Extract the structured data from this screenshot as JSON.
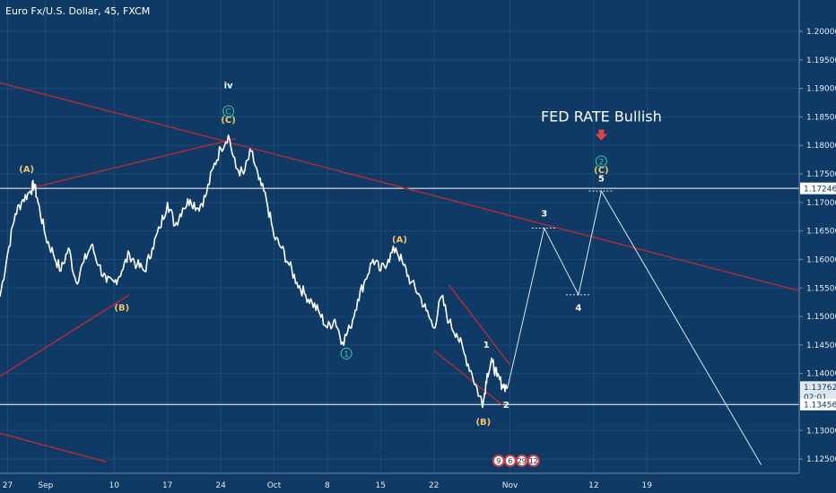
{
  "chart_data": {
    "type": "line",
    "title": "Euro Fx/U.S. Dollar, 45, FXCM",
    "colors": {
      "background": "#0f3a66",
      "price": "#ffffff",
      "trendline": "#b52a34",
      "wave_orange": "#f2c26b",
      "wave_green": "#3ec9a4",
      "projection": "#dde6ee",
      "hline": "#ffffff"
    },
    "ylim": [
      1.1225,
      1.2055
    ],
    "y_ticks": [
      "1.20000",
      "1.19500",
      "1.19000",
      "1.18500",
      "1.18000",
      "1.17500",
      "1.17000",
      "1.16500",
      "1.16000",
      "1.15500",
      "1.15000",
      "1.14500",
      "1.14000",
      "1.13500",
      "1.13000",
      "1.12500"
    ],
    "y_tick_values": [
      1.2,
      1.195,
      1.19,
      1.185,
      1.18,
      1.175,
      1.17,
      1.165,
      1.16,
      1.155,
      1.15,
      1.145,
      1.14,
      1.135,
      1.13,
      1.125
    ],
    "x_ticks": [
      {
        "label": "27",
        "t": 0
      },
      {
        "label": "Sep",
        "t": 5
      },
      {
        "label": "10",
        "t": 14
      },
      {
        "label": "17",
        "t": 21
      },
      {
        "label": "24",
        "t": 28
      },
      {
        "label": "Oct",
        "t": 35
      },
      {
        "label": "8",
        "t": 42
      },
      {
        "label": "15",
        "t": 49
      },
      {
        "label": "22",
        "t": 56
      },
      {
        "label": "Nov",
        "t": 66
      },
      {
        "label": "12",
        "t": 77
      },
      {
        "label": "19",
        "t": 84
      }
    ],
    "xlim": [
      -1,
      104
    ],
    "price_path": [
      [
        -1,
        1.1535
      ],
      [
        0,
        1.161
      ],
      [
        1,
        1.168
      ],
      [
        2,
        1.1705
      ],
      [
        3,
        1.172
      ],
      [
        3.5,
        1.1732
      ],
      [
        4,
        1.17
      ],
      [
        5,
        1.164
      ],
      [
        6,
        1.161
      ],
      [
        7,
        1.158
      ],
      [
        8,
        1.162
      ],
      [
        9,
        1.156
      ],
      [
        10,
        1.1595
      ],
      [
        11,
        1.1625
      ],
      [
        12,
        1.159
      ],
      [
        13,
        1.156
      ],
      [
        14,
        1.156
      ],
      [
        15,
        1.158
      ],
      [
        16,
        1.161
      ],
      [
        17,
        1.159
      ],
      [
        18,
        1.158
      ],
      [
        19,
        1.162
      ],
      [
        20,
        1.1655
      ],
      [
        21,
        1.17
      ],
      [
        22,
        1.166
      ],
      [
        23,
        1.169
      ],
      [
        24,
        1.1705
      ],
      [
        25,
        1.169
      ],
      [
        26,
        1.171
      ],
      [
        27,
        1.176
      ],
      [
        28,
        1.1795
      ],
      [
        29,
        1.1818
      ],
      [
        30,
        1.176
      ],
      [
        31,
        1.175
      ],
      [
        32,
        1.179
      ],
      [
        33,
        1.174
      ],
      [
        34,
        1.1705
      ],
      [
        35,
        1.164
      ],
      [
        36,
        1.162
      ],
      [
        37,
        1.159
      ],
      [
        38,
        1.156
      ],
      [
        39,
        1.154
      ],
      [
        40,
        1.1525
      ],
      [
        41,
        1.1505
      ],
      [
        42,
        1.148
      ],
      [
        43,
        1.1495
      ],
      [
        44,
        1.1455
      ],
      [
        45,
        1.148
      ],
      [
        46,
        1.153
      ],
      [
        47,
        1.1565
      ],
      [
        48,
        1.16
      ],
      [
        49,
        1.158
      ],
      [
        50,
        1.16
      ],
      [
        51,
        1.162
      ],
      [
        52,
        1.159
      ],
      [
        53,
        1.156
      ],
      [
        54,
        1.154
      ],
      [
        55,
        1.151
      ],
      [
        56,
        1.148
      ],
      [
        57,
        1.1535
      ],
      [
        58,
        1.149
      ],
      [
        59,
        1.147
      ],
      [
        60,
        1.1435
      ],
      [
        61,
        1.14
      ],
      [
        62,
        1.136
      ],
      [
        62.5,
        1.135
      ],
      [
        63,
        1.14
      ],
      [
        63.7,
        1.142
      ],
      [
        64.3,
        1.1395
      ],
      [
        65,
        1.138
      ],
      [
        65.7,
        1.1376
      ]
    ],
    "projection_path": [
      [
        65.7,
        1.1376
      ],
      [
        70.5,
        1.1655
      ],
      [
        75,
        1.1538
      ],
      [
        78,
        1.172
      ],
      [
        99,
        1.124
      ]
    ],
    "horizontal_levels": [
      1.17246,
      1.13456
    ],
    "price_tags": [
      {
        "text": "1.17246",
        "value": 1.17246
      },
      {
        "text": "1.13762",
        "value": 1.13762
      },
      {
        "text": "02:01",
        "value": 1.1359
      },
      {
        "text": "1.13456",
        "value": 1.13456
      }
    ],
    "trendlines": [
      {
        "x1": -1,
        "y1": 1.191,
        "x2": 104,
        "y2": 1.1545
      },
      {
        "x1": -1,
        "y1": 1.1395,
        "x2": 16,
        "y2": 1.1538
      },
      {
        "x1": 3,
        "y1": 1.1725,
        "x2": 30,
        "y2": 1.1812
      },
      {
        "x1": -1,
        "y1": 1.1295,
        "x2": 13,
        "y2": 1.1245
      },
      {
        "x1": 58,
        "y1": 1.1555,
        "x2": 66,
        "y2": 1.1415
      },
      {
        "x1": 56,
        "y1": 1.144,
        "x2": 65,
        "y2": 1.1345
      }
    ],
    "wave_labels": [
      {
        "text": "iv",
        "t": 29,
        "y": 1.19,
        "color": "#ffffff",
        "size": 13
      },
      {
        "text": "(C)",
        "t": 29,
        "y": 1.184,
        "color": "#f2c26b",
        "size": 10
      },
      {
        "text": "(A)",
        "t": 2.5,
        "y": 1.1753,
        "color": "#f2c26b",
        "size": 10
      },
      {
        "text": "(B)",
        "t": 15,
        "y": 1.151,
        "color": "#f2c26b",
        "size": 10
      },
      {
        "text": "(A)",
        "t": 51.5,
        "y": 1.163,
        "color": "#f2c26b",
        "size": 10
      },
      {
        "text": "(B)",
        "t": 62.5,
        "y": 1.131,
        "color": "#f2c26b",
        "size": 10
      },
      {
        "text": "1",
        "t": 62.9,
        "y": 1.1445,
        "color": "#ffffff",
        "size": 10
      },
      {
        "text": "2",
        "t": 65.5,
        "y": 1.134,
        "color": "#ffffff",
        "size": 10
      },
      {
        "text": "3",
        "t": 70.5,
        "y": 1.1675,
        "color": "#ffffff",
        "size": 10
      },
      {
        "text": "4",
        "t": 75,
        "y": 1.151,
        "color": "#ffffff",
        "size": 10
      },
      {
        "text": "5",
        "t": 78,
        "y": 1.1737,
        "color": "#ffffff",
        "size": 10
      },
      {
        "text": "(C)",
        "t": 78,
        "y": 1.1752,
        "color": "#f2c26b",
        "size": 10
      }
    ],
    "circled_labels": [
      {
        "text": "C",
        "t": 29,
        "y": 1.186,
        "color": "#3ec9a4"
      },
      {
        "text": "1",
        "t": 44.5,
        "y": 1.1435,
        "color": "#3ec9a4"
      },
      {
        "text": "2",
        "t": 78,
        "y": 1.1772,
        "color": "#3ec9a4"
      }
    ],
    "annotation": {
      "text": "FED RATE Bullish",
      "t": 78,
      "y": 1.1842
    },
    "event_badges": [
      "9",
      "6",
      "29",
      "12"
    ]
  }
}
